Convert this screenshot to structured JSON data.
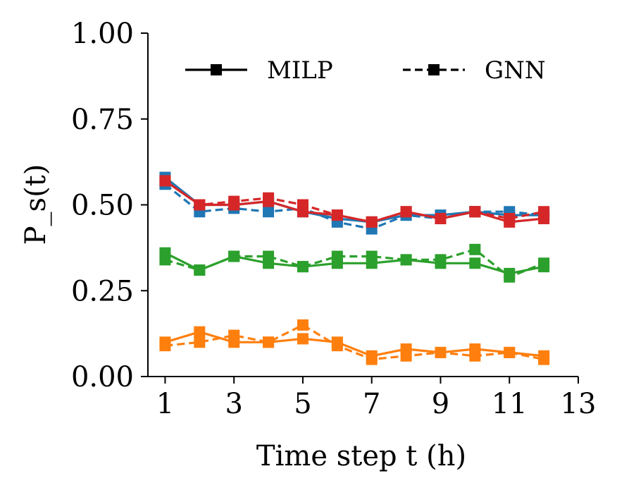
{
  "chart_data": {
    "type": "line",
    "xlabel": "Time step t (h)",
    "ylabel": "P_s(t)",
    "xlim": [
      0.5,
      13
    ],
    "ylim": [
      0,
      1
    ],
    "xticks": [
      1,
      3,
      5,
      7,
      9,
      11,
      13
    ],
    "xtick_labels": [
      "1",
      "3",
      "5",
      "7",
      "9",
      "11",
      "13"
    ],
    "yticks": [
      0,
      0.25,
      0.5,
      0.75,
      1.0
    ],
    "ytick_labels": [
      "0.00",
      "0.25",
      "0.50",
      "0.75",
      "1.00"
    ],
    "grid": false,
    "legend": {
      "placement": "top",
      "entries": [
        {
          "label": "MILP",
          "style": "solid"
        },
        {
          "label": "GNN",
          "style": "dashed"
        }
      ]
    },
    "x": [
      1,
      2,
      3,
      4,
      5,
      6,
      7,
      8,
      9,
      10,
      11,
      12
    ],
    "series": [
      {
        "method": "MILP",
        "color": "#1f77b4",
        "dashed": false,
        "values": [
          0.58,
          0.5,
          0.5,
          0.51,
          0.48,
          0.46,
          0.45,
          0.47,
          0.47,
          0.48,
          0.47,
          0.47
        ]
      },
      {
        "method": "GNN",
        "color": "#1f77b4",
        "dashed": true,
        "values": [
          0.56,
          0.48,
          0.49,
          0.48,
          0.49,
          0.45,
          0.43,
          0.47,
          0.46,
          0.48,
          0.48,
          0.47
        ]
      },
      {
        "method": "MILP",
        "color": "#2ca02c",
        "dashed": false,
        "values": [
          0.36,
          0.31,
          0.35,
          0.33,
          0.32,
          0.33,
          0.33,
          0.34,
          0.33,
          0.33,
          0.3,
          0.32
        ]
      },
      {
        "method": "GNN",
        "color": "#2ca02c",
        "dashed": true,
        "values": [
          0.34,
          0.31,
          0.35,
          0.35,
          0.32,
          0.35,
          0.35,
          0.34,
          0.34,
          0.37,
          0.29,
          0.33
        ]
      },
      {
        "method": "MILP",
        "color": "#ff7f0e",
        "dashed": false,
        "values": [
          0.1,
          0.13,
          0.1,
          0.1,
          0.11,
          0.1,
          0.06,
          0.08,
          0.07,
          0.08,
          0.07,
          0.06
        ]
      },
      {
        "method": "GNN",
        "color": "#ff7f0e",
        "dashed": true,
        "values": [
          0.09,
          0.1,
          0.12,
          0.1,
          0.15,
          0.09,
          0.05,
          0.06,
          0.07,
          0.06,
          0.07,
          0.05
        ]
      },
      {
        "method": "MILP",
        "color": "#d62728",
        "dashed": false,
        "values": [
          0.57,
          0.5,
          0.5,
          0.51,
          0.48,
          0.47,
          0.45,
          0.48,
          0.46,
          0.48,
          0.45,
          0.46
        ]
      },
      {
        "method": "GNN",
        "color": "#d62728",
        "dashed": true,
        "values": [
          0.57,
          0.5,
          0.51,
          0.52,
          0.5,
          0.47,
          0.45,
          0.48,
          0.46,
          0.48,
          0.46,
          0.48
        ]
      }
    ]
  }
}
